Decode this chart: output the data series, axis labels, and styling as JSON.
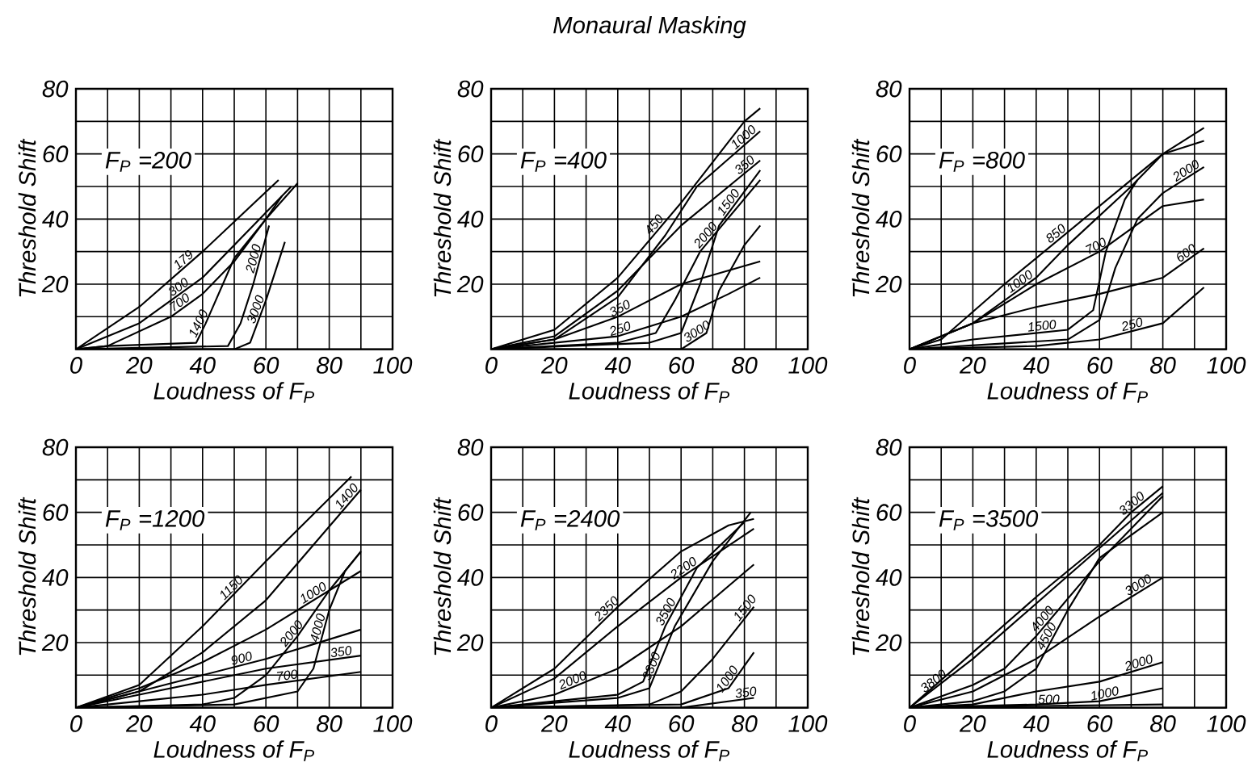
{
  "chart_data": [
    {
      "type": "line",
      "xlabel": "Loudness of F$_{P}$",
      "ylabel": "Threshold Shift",
      "annotations": [
        "F$_{P}$ =200"
      ],
      "xlim": [
        0,
        100
      ],
      "ylim": [
        0,
        80
      ],
      "xticks": [
        0,
        {
          "value": 10,
          "label": null
        },
        20,
        {
          "value": 30,
          "label": null
        },
        40,
        {
          "value": 50,
          "label": null
        },
        60,
        {
          "value": 70,
          "label": null
        },
        80,
        {
          "value": 90,
          "label": null
        },
        100
      ],
      "yticks": [
        {
          "value": 0,
          "label": null
        },
        {
          "value": 10,
          "label": null
        },
        20,
        {
          "value": 30,
          "label": null
        },
        40,
        {
          "value": 50,
          "label": null
        },
        60,
        {
          "value": 70,
          "label": null
        },
        80
      ],
      "grid": true,
      "series": [
        {
          "name": "179",
          "color": "#000000",
          "x": [
            0,
            20,
            40,
            64
          ],
          "values": [
            0,
            13,
            30,
            52
          ]
        },
        {
          "name": "300",
          "color": "#000000",
          "x": [
            0,
            20,
            40,
            60,
            68
          ],
          "values": [
            0,
            8,
            22,
            42,
            50
          ]
        },
        {
          "name": "700",
          "color": "#000000",
          "x": [
            0,
            10,
            30,
            40,
            50,
            60,
            70
          ],
          "values": [
            0,
            1,
            10,
            17,
            27,
            40,
            51
          ]
        },
        {
          "name": "1400",
          "color": "#000000",
          "x": [
            0,
            10,
            38,
            41,
            50,
            60,
            65
          ],
          "values": [
            0,
            1,
            2,
            8,
            28,
            40,
            47
          ]
        },
        {
          "name": "2000",
          "color": "#000000",
          "x": [
            0,
            48,
            52,
            56,
            61
          ],
          "values": [
            0,
            1,
            8,
            20,
            38
          ]
        },
        {
          "name": "3000",
          "color": "#000000",
          "x": [
            0,
            50,
            55,
            60,
            66
          ],
          "values": [
            0,
            0,
            2,
            15,
            33
          ]
        }
      ]
    },
    {
      "type": "line",
      "title": "Monaural Masking",
      "xlabel": "Loudness of F$_{P}$",
      "ylabel": "Threshold Shift",
      "annotations": [
        "F$_{P}$ =400"
      ],
      "xlim": [
        0,
        100
      ],
      "ylim": [
        0,
        80
      ],
      "xticks": [
        0,
        {
          "value": 10,
          "label": null
        },
        20,
        {
          "value": 30,
          "label": null
        },
        40,
        {
          "value": 50,
          "label": null
        },
        60,
        {
          "value": 70,
          "label": null
        },
        80,
        {
          "value": 90,
          "label": null
        },
        100
      ],
      "yticks": [
        {
          "value": 0,
          "label": null
        },
        {
          "value": 10,
          "label": null
        },
        20,
        {
          "value": 30,
          "label": null
        },
        40,
        {
          "value": 50,
          "label": null
        },
        60,
        {
          "value": 70,
          "label": null
        },
        80
      ],
      "grid": true,
      "series": [
        {
          "name": "450",
          "color": "#000000",
          "x": [
            0,
            20,
            40,
            60,
            80,
            85
          ],
          "values": [
            0,
            6,
            22,
            45,
            70,
            74
          ]
        },
        {
          "name": "350",
          "color": "#000000",
          "x": [
            0,
            20,
            40,
            60,
            85
          ],
          "values": [
            0,
            4,
            18,
            38,
            58
          ]
        },
        {
          "name": "1000",
          "color": "#000000",
          "x": [
            0,
            20,
            40,
            55,
            65,
            85
          ],
          "values": [
            0,
            3,
            16,
            35,
            50,
            67
          ]
        },
        {
          "name": "2000",
          "color": "#000000",
          "x": [
            0,
            40,
            52,
            58,
            66,
            85
          ],
          "values": [
            0,
            2,
            5,
            15,
            30,
            52
          ]
        },
        {
          "name": "1500",
          "color": "#000000",
          "x": [
            0,
            50,
            60,
            66,
            72,
            85
          ],
          "values": [
            0,
            2,
            5,
            20,
            38,
            55
          ]
        },
        {
          "name": "350",
          "color": "#000000",
          "x": [
            0,
            20,
            40,
            60,
            85
          ],
          "values": [
            0,
            3,
            10,
            20,
            27
          ]
        },
        {
          "name": "250",
          "color": "#000000",
          "x": [
            0,
            40,
            60,
            75,
            85
          ],
          "values": [
            0,
            4,
            10,
            17,
            22
          ]
        },
        {
          "name": "3000",
          "color": "#000000",
          "x": [
            0,
            60,
            68,
            72,
            80,
            85
          ],
          "values": [
            0,
            0,
            5,
            18,
            32,
            38
          ]
        }
      ]
    },
    {
      "type": "line",
      "xlabel": "Loudness of F$_{P}$",
      "ylabel": "Threshold Shift",
      "annotations": [
        "F$_{P}$ =800"
      ],
      "xlim": [
        0,
        100
      ],
      "ylim": [
        0,
        80
      ],
      "xticks": [
        0,
        {
          "value": 10,
          "label": null
        },
        20,
        {
          "value": 30,
          "label": null
        },
        40,
        {
          "value": 50,
          "label": null
        },
        60,
        {
          "value": 70,
          "label": null
        },
        80,
        {
          "value": 90,
          "label": null
        },
        100
      ],
      "yticks": [
        {
          "value": 0,
          "label": null
        },
        {
          "value": 10,
          "label": null
        },
        20,
        {
          "value": 30,
          "label": null
        },
        40,
        {
          "value": 50,
          "label": null
        },
        60,
        {
          "value": 70,
          "label": null
        },
        80
      ],
      "grid": true,
      "series": [
        {
          "name": "850",
          "color": "#000000",
          "x": [
            0,
            10,
            30,
            50,
            70,
            80,
            93
          ],
          "values": [
            0,
            3,
            20,
            36,
            52,
            60,
            68
          ]
        },
        {
          "name": "1000",
          "color": "#000000",
          "x": [
            0,
            20,
            40,
            50,
            70,
            80,
            93
          ],
          "values": [
            0,
            8,
            22,
            32,
            50,
            60,
            64
          ]
        },
        {
          "name": "700",
          "color": "#000000",
          "x": [
            0,
            20,
            40,
            60,
            80,
            93
          ],
          "values": [
            0,
            8,
            20,
            30,
            44,
            46
          ]
        },
        {
          "name": "1500",
          "color": "#000000",
          "x": [
            0,
            20,
            50,
            58,
            62,
            68,
            72
          ],
          "values": [
            0,
            3,
            6,
            12,
            30,
            46,
            52
          ]
        },
        {
          "name": "2000",
          "color": "#000000",
          "x": [
            0,
            50,
            60,
            65,
            72,
            80,
            93
          ],
          "values": [
            0,
            3,
            9,
            25,
            40,
            48,
            56
          ]
        },
        {
          "name": "600",
          "color": "#000000",
          "x": [
            0,
            20,
            40,
            60,
            80,
            93
          ],
          "values": [
            0,
            8,
            13,
            17,
            22,
            31
          ]
        },
        {
          "name": "250",
          "color": "#000000",
          "x": [
            0,
            40,
            60,
            80,
            93
          ],
          "values": [
            0,
            1,
            3,
            8,
            19
          ]
        }
      ]
    },
    {
      "type": "line",
      "xlabel": "Loudness of F$_{P}$",
      "ylabel": "Threshold Shift",
      "annotations": [
        "F$_{P}$ =1200"
      ],
      "xlim": [
        0,
        100
      ],
      "ylim": [
        0,
        80
      ],
      "xticks": [
        0,
        {
          "value": 10,
          "label": null
        },
        20,
        {
          "value": 30,
          "label": null
        },
        40,
        {
          "value": 50,
          "label": null
        },
        60,
        {
          "value": 70,
          "label": null
        },
        80,
        {
          "value": 90,
          "label": null
        },
        100
      ],
      "yticks": [
        {
          "value": 0,
          "label": null
        },
        {
          "value": 10,
          "label": null
        },
        20,
        {
          "value": 30,
          "label": null
        },
        40,
        {
          "value": 50,
          "label": null
        },
        60,
        {
          "value": 70,
          "label": null
        },
        80
      ],
      "grid": true,
      "series": [
        {
          "name": "1150",
          "color": "#000000",
          "x": [
            0,
            20,
            40,
            60,
            87
          ],
          "values": [
            0,
            7,
            25,
            45,
            71
          ]
        },
        {
          "name": "1400",
          "color": "#000000",
          "x": [
            0,
            20,
            40,
            60,
            90
          ],
          "values": [
            0,
            5,
            17,
            33,
            67
          ]
        },
        {
          "name": "1000",
          "color": "#000000",
          "x": [
            0,
            20,
            40,
            60,
            90
          ],
          "values": [
            0,
            6,
            14,
            24,
            42
          ]
        },
        {
          "name": "2000",
          "color": "#000000",
          "x": [
            0,
            40,
            50,
            60,
            70,
            80,
            90
          ],
          "values": [
            0,
            1,
            3,
            10,
            22,
            36,
            48
          ]
        },
        {
          "name": "4000",
          "color": "#000000",
          "x": [
            0,
            50,
            70,
            75,
            80,
            85,
            90
          ],
          "values": [
            0,
            1,
            5,
            12,
            30,
            42,
            48
          ]
        },
        {
          "name": "900",
          "color": "#000000",
          "x": [
            0,
            20,
            40,
            60,
            90
          ],
          "values": [
            0,
            5,
            10,
            15,
            24
          ]
        },
        {
          "name": "350",
          "color": "#000000",
          "x": [
            0,
            20,
            40,
            60,
            90
          ],
          "values": [
            0,
            4,
            8,
            12,
            16
          ]
        },
        {
          "name": "700",
          "color": "#000000",
          "x": [
            0,
            20,
            40,
            60,
            90
          ],
          "values": [
            0,
            2,
            4,
            7,
            11
          ]
        }
      ]
    },
    {
      "type": "line",
      "xlabel": "Loudness of F$_{P}$",
      "ylabel": "Threshold Shift",
      "annotations": [
        "F$_{P}$ =2400"
      ],
      "xlim": [
        0,
        100
      ],
      "ylim": [
        0,
        80
      ],
      "xticks": [
        0,
        {
          "value": 10,
          "label": null
        },
        20,
        {
          "value": 30,
          "label": null
        },
        40,
        {
          "value": 50,
          "label": null
        },
        60,
        {
          "value": 70,
          "label": null
        },
        80,
        {
          "value": 90,
          "label": null
        },
        100
      ],
      "yticks": [
        {
          "value": 0,
          "label": null
        },
        {
          "value": 10,
          "label": null
        },
        20,
        {
          "value": 30,
          "label": null
        },
        40,
        {
          "value": 50,
          "label": null
        },
        60,
        {
          "value": 70,
          "label": null
        },
        80
      ],
      "grid": true,
      "series": [
        {
          "name": "2350",
          "color": "#000000",
          "x": [
            0,
            20,
            40,
            60,
            75,
            83
          ],
          "values": [
            0,
            12,
            31,
            48,
            56,
            58
          ]
        },
        {
          "name": "2200",
          "color": "#000000",
          "x": [
            0,
            20,
            40,
            60,
            83
          ],
          "values": [
            0,
            9,
            25,
            40,
            55
          ]
        },
        {
          "name": "2000",
          "color": "#000000",
          "x": [
            0,
            20,
            40,
            60,
            83
          ],
          "values": [
            0,
            4,
            12,
            25,
            44
          ]
        },
        {
          "name": "3500",
          "color": "#000000",
          "x": [
            0,
            20,
            40,
            48,
            55,
            65,
            80
          ],
          "values": [
            0,
            2,
            4,
            8,
            25,
            43,
            57
          ]
        },
        {
          "name": "3300",
          "color": "#000000",
          "x": [
            0,
            40,
            50,
            58,
            70,
            82
          ],
          "values": [
            0,
            3,
            6,
            25,
            45,
            60
          ]
        },
        {
          "name": "1500",
          "color": "#000000",
          "x": [
            0,
            50,
            60,
            70,
            83
          ],
          "values": [
            0,
            1,
            5,
            15,
            31
          ]
        },
        {
          "name": "1000",
          "color": "#000000",
          "x": [
            0,
            60,
            75,
            83
          ],
          "values": [
            0,
            1,
            6,
            17
          ]
        },
        {
          "name": "350",
          "color": "#000000",
          "x": [
            0,
            60,
            83
          ],
          "values": [
            0,
            0,
            3
          ]
        }
      ]
    },
    {
      "type": "line",
      "xlabel": "Loudness of F$_{P}$",
      "ylabel": "Threshold Shift",
      "annotations": [
        "F$_{P}$ =3500"
      ],
      "xlim": [
        0,
        100
      ],
      "ylim": [
        0,
        80
      ],
      "xticks": [
        0,
        {
          "value": 10,
          "label": null
        },
        20,
        {
          "value": 30,
          "label": null
        },
        40,
        {
          "value": 50,
          "label": null
        },
        60,
        {
          "value": 70,
          "label": null
        },
        80,
        {
          "value": 90,
          "label": null
        },
        100
      ],
      "yticks": [
        {
          "value": 0,
          "label": null
        },
        {
          "value": 10,
          "label": null
        },
        20,
        {
          "value": 30,
          "label": null
        },
        40,
        {
          "value": 50,
          "label": null
        },
        60,
        {
          "value": 70,
          "label": null
        },
        80
      ],
      "grid": true,
      "series": [
        {
          "name": "3300",
          "color": "#000000",
          "x": [
            0,
            20,
            40,
            60,
            70,
            80
          ],
          "values": [
            0,
            17,
            34,
            50,
            60,
            68
          ]
        },
        {
          "name": "3800",
          "color": "#000000",
          "x": [
            0,
            20,
            40,
            60,
            80
          ],
          "values": [
            0,
            15,
            32,
            49,
            66
          ]
        },
        {
          "name": "4000",
          "color": "#000000",
          "x": [
            0,
            20,
            30,
            40,
            60,
            80
          ],
          "values": [
            0,
            7,
            12,
            22,
            45,
            65
          ]
        },
        {
          "name": "4500",
          "color": "#000000",
          "x": [
            0,
            20,
            30,
            40,
            50,
            60,
            80
          ],
          "values": [
            0,
            2,
            5,
            12,
            30,
            46,
            60
          ]
        },
        {
          "name": "3000",
          "color": "#000000",
          "x": [
            0,
            20,
            40,
            60,
            80
          ],
          "values": [
            0,
            5,
            15,
            28,
            40
          ]
        },
        {
          "name": "2000",
          "color": "#000000",
          "x": [
            0,
            20,
            40,
            60,
            80
          ],
          "values": [
            0,
            1,
            5,
            8,
            14
          ]
        },
        {
          "name": "1000",
          "color": "#000000",
          "x": [
            0,
            40,
            60,
            80
          ],
          "values": [
            0,
            1,
            2,
            6
          ]
        },
        {
          "name": "500",
          "color": "#000000",
          "x": [
            0,
            80
          ],
          "values": [
            0,
            1
          ]
        }
      ]
    }
  ]
}
